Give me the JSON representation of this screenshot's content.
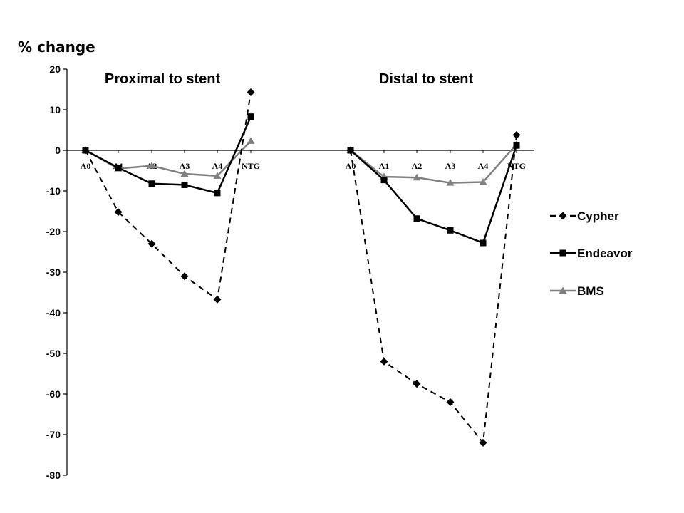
{
  "chart_data": {
    "type": "line",
    "ylabel": "% change",
    "ylim": [
      -80,
      20
    ],
    "yticks": [
      "20",
      "10",
      "0",
      "-10",
      "-20",
      "-30",
      "-40",
      "-50",
      "-60",
      "-70",
      "-80"
    ],
    "grid": false,
    "legend_position": "right",
    "categories": [
      "A0",
      "A1",
      "A2",
      "A3",
      "A4",
      "NTG"
    ],
    "panels": [
      {
        "title": "Proximal to stent",
        "series": [
          {
            "name": "Cypher",
            "values": [
              0,
              -15.2,
              -23,
              -31,
              -36.7,
              14.3
            ]
          },
          {
            "name": "Endeavor",
            "values": [
              0,
              -4.3,
              -8.2,
              -8.5,
              -10.5,
              8.3
            ]
          },
          {
            "name": "BMS",
            "values": [
              0,
              -4.5,
              -3.8,
              -5.8,
              -6.3,
              2.3
            ]
          }
        ]
      },
      {
        "title": "Distal to stent",
        "series": [
          {
            "name": "Cypher",
            "values": [
              0,
              -52,
              -57.5,
              -62,
              -72,
              3.8
            ]
          },
          {
            "name": "Endeavor",
            "values": [
              0,
              -7.3,
              -16.8,
              -19.7,
              -22.8,
              1.2
            ]
          },
          {
            "name": "BMS",
            "values": [
              0,
              -6.5,
              -6.7,
              -8,
              -7.8,
              1.5
            ]
          }
        ]
      }
    ],
    "series_styles": [
      {
        "name": "Cypher",
        "color": "#000000",
        "dash": "dashed",
        "marker": "diamond"
      },
      {
        "name": "Endeavor",
        "color": "#000000",
        "dash": "solid",
        "marker": "square"
      },
      {
        "name": "BMS",
        "color": "#808080",
        "dash": "solid",
        "marker": "triangle"
      }
    ]
  }
}
